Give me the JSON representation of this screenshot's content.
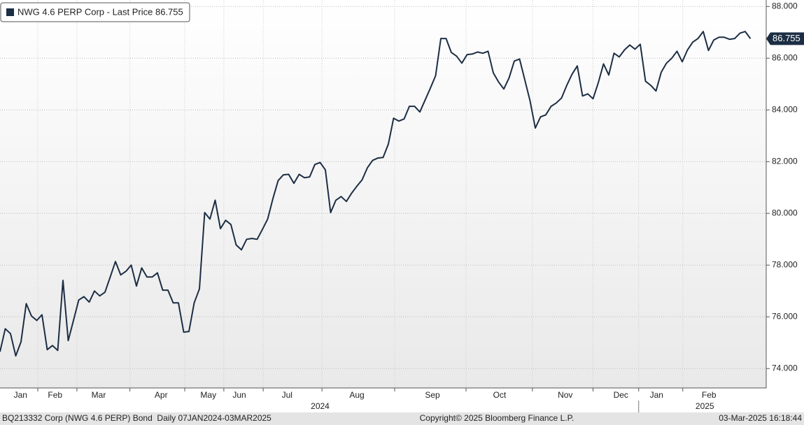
{
  "chart_data": {
    "type": "line",
    "series": [
      {
        "name": "NWG 4.6 PERP Corp - Last Price 86.755",
        "color": "#1c2e44",
        "values": [
          74.65,
          75.54,
          75.35,
          74.49,
          75.03,
          76.51,
          76.03,
          75.86,
          76.08,
          74.73,
          74.89,
          74.7,
          77.41,
          75.08,
          75.86,
          76.65,
          76.78,
          76.57,
          77.0,
          76.81,
          76.95,
          77.54,
          78.14,
          77.62,
          77.76,
          78.0,
          77.19,
          77.89,
          77.54,
          77.54,
          77.7,
          77.03,
          77.03,
          76.54,
          76.54,
          75.41,
          75.43,
          76.54,
          77.08,
          80.03,
          79.78,
          80.51,
          79.41,
          79.73,
          79.57,
          78.78,
          78.59,
          79.0,
          79.03,
          79.0,
          79.38,
          79.78,
          80.57,
          81.27,
          81.49,
          81.51,
          81.16,
          81.51,
          81.38,
          81.41,
          81.89,
          81.97,
          81.68,
          80.03,
          80.51,
          80.65,
          80.46,
          80.78,
          81.05,
          81.3,
          81.76,
          82.05,
          82.14,
          82.16,
          82.68,
          83.68,
          83.57,
          83.65,
          84.14,
          84.14,
          83.92,
          84.38,
          84.84,
          85.32,
          86.76,
          86.76,
          86.22,
          86.08,
          85.81,
          86.14,
          86.16,
          86.24,
          86.19,
          86.27,
          85.43,
          85.08,
          84.81,
          85.24,
          85.89,
          85.97,
          85.16,
          84.35,
          83.3,
          83.73,
          83.81,
          84.14,
          84.27,
          84.46,
          84.95,
          85.38,
          85.7,
          84.54,
          84.62,
          84.43,
          85.05,
          85.78,
          85.35,
          86.19,
          86.05,
          86.32,
          86.51,
          86.35,
          86.54,
          85.11,
          84.95,
          84.73,
          85.46,
          85.81,
          86.0,
          86.27,
          85.86,
          86.32,
          86.62,
          86.76,
          87.03,
          86.3,
          86.7,
          86.81,
          86.81,
          86.73,
          86.76,
          86.97,
          87.03,
          86.755
        ]
      }
    ],
    "xlim": [
      0,
      146
    ],
    "xticks": [
      {
        "value": 3.9,
        "label": "Jan"
      },
      {
        "value": 10.5,
        "label": "Feb"
      },
      {
        "value": 18.8,
        "label": "Mar"
      },
      {
        "value": 30.7,
        "label": "Apr"
      },
      {
        "value": 39.7,
        "label": "May"
      },
      {
        "value": 45.6,
        "label": "Jun"
      },
      {
        "value": 54.7,
        "label": "Jul"
      },
      {
        "value": 68,
        "label": "Aug"
      },
      {
        "value": 82.4,
        "label": "Sep"
      },
      {
        "value": 95.2,
        "label": "Oct"
      },
      {
        "value": 107.7,
        "label": "Nov"
      },
      {
        "value": 118.3,
        "label": "Dec"
      },
      {
        "value": 125.1,
        "label": "Jan"
      },
      {
        "value": 135.1,
        "label": "Feb"
      }
    ],
    "year_labels": [
      {
        "value": 61,
        "label": "2024"
      },
      {
        "value": 134.3,
        "label": "2025"
      }
    ],
    "ylim": [
      73.25,
      88.25
    ],
    "yticks": [
      {
        "value": 74,
        "label": "74.000"
      },
      {
        "value": 76,
        "label": "76.000"
      },
      {
        "value": 78,
        "label": "78.000"
      },
      {
        "value": 80,
        "label": "80.000"
      },
      {
        "value": 82,
        "label": "82.000"
      },
      {
        "value": 84,
        "label": "84.000"
      },
      {
        "value": 86,
        "label": "86.000"
      },
      {
        "value": 88,
        "label": "88.000"
      }
    ],
    "grid": true
  },
  "footer": {
    "left": "BQ213332 Corp (NWG 4.6 PERP) Bond  Daily 07JAN2024-03MAR2025",
    "center": "Copyright© 2025 Bloomberg Finance L.P.",
    "right": "03-Mar-2025 16:18:44"
  }
}
